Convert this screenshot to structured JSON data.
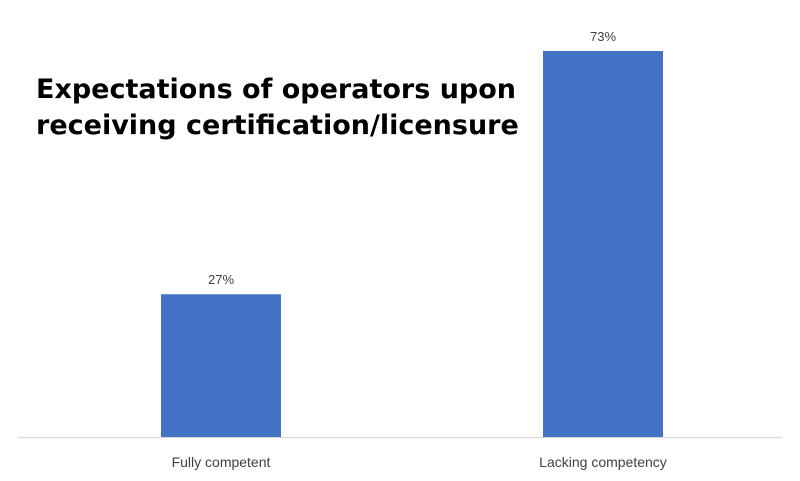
{
  "chart_data": {
    "type": "bar",
    "title_lines": [
      "Expectations of operators upon",
      "receiving certification/licensure"
    ],
    "categories": [
      "Fully competent",
      "Lacking competency"
    ],
    "values": [
      27,
      73
    ],
    "data_labels": [
      "27%",
      "73%"
    ],
    "ylim": [
      0,
      80
    ],
    "grid": false,
    "legend": "none",
    "xlabel": "",
    "ylabel": "",
    "colors": {
      "bar": "#4472c4",
      "axis_line": "#d9d9d9",
      "data_label": "#404040",
      "tick_label": "#404040",
      "title": "#000000"
    }
  }
}
